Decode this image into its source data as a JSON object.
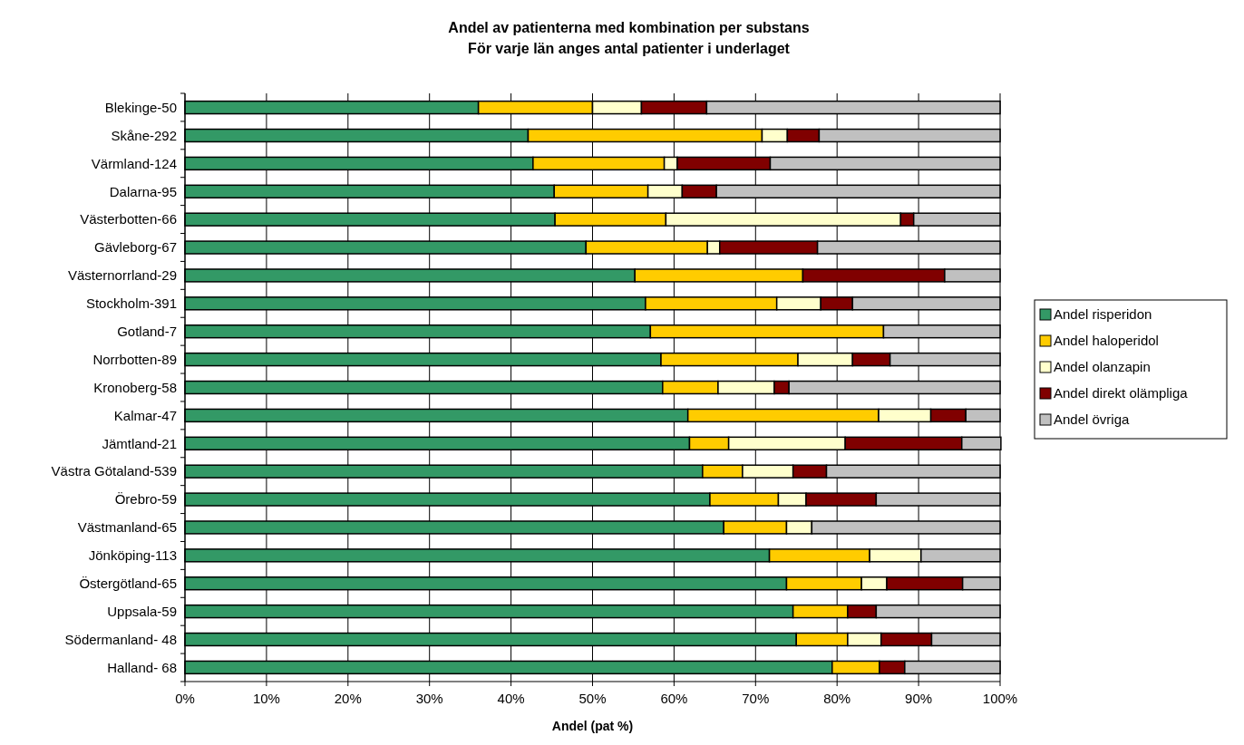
{
  "chart_data": {
    "type": "bar",
    "orientation": "horizontal",
    "stacked": true,
    "title": "Andel av patienterna med kombination per substans",
    "subtitle": "För varje län anges antal patienter i underlaget",
    "xlabel": "Andel (pat %)",
    "categories": [
      "Blekinge-50",
      "Skåne-292",
      "Värmland-124",
      "Dalarna-95",
      "Västerbotten-66",
      "Gävleborg-67",
      "Västernorrland-29",
      "Stockholm-391",
      "Gotland-7",
      "Norrbotten-89",
      "Kronoberg-58",
      "Kalmar-47",
      "Jämtland-21",
      "Västra Götaland-539",
      "Örebro-59",
      "Västmanland-65",
      "Jönköping-113",
      "Östergötland-65",
      "Uppsala-59",
      "Södermanland- 48",
      "Halland- 68"
    ],
    "series": [
      {
        "name": "Andel risperidon",
        "color": "#339966",
        "values": [
          36,
          42.1,
          42.7,
          45.3,
          45.4,
          49.2,
          55.2,
          56.5,
          57.1,
          58.4,
          58.6,
          61.7,
          61.9,
          63.5,
          64.4,
          66.1,
          71.7,
          73.8,
          74.6,
          75,
          79.4
        ]
      },
      {
        "name": "Andel haloperidol",
        "color": "#ffcc00",
        "values": [
          14,
          28.7,
          16.1,
          11.5,
          13.6,
          14.9,
          20.6,
          16.1,
          28.6,
          16.8,
          6.8,
          23.4,
          4.8,
          4.9,
          8.4,
          7.7,
          12.3,
          9.2,
          6.7,
          6.3,
          5.8
        ]
      },
      {
        "name": "Andel olanzapin",
        "color": "#ffffcc",
        "values": [
          6,
          3.1,
          1.6,
          4.2,
          28.8,
          1.5,
          0,
          5.4,
          0,
          6.7,
          6.9,
          6.4,
          14.3,
          6.2,
          3.4,
          3.1,
          6.3,
          3.1,
          0,
          4.1,
          0
        ]
      },
      {
        "name": "Andel direkt olämpliga",
        "color": "#800000",
        "values": [
          8,
          3.9,
          11.4,
          4.2,
          1.6,
          12,
          17.4,
          3.9,
          0,
          4.6,
          1.8,
          4.3,
          14.3,
          4.1,
          8.6,
          0,
          0,
          9.3,
          3.5,
          6.2,
          3.1
        ]
      },
      {
        "name": "Andel övriga",
        "color": "#c0c0c0",
        "values": [
          36,
          22.2,
          28.2,
          34.8,
          10.6,
          22.4,
          6.8,
          18.1,
          14.3,
          13.5,
          25.9,
          4.2,
          4.8,
          21.3,
          15.2,
          23.1,
          9.7,
          4.6,
          15.2,
          8.4,
          11.7
        ]
      }
    ],
    "xlim": [
      0,
      100
    ],
    "xticks": [
      {
        "value": 0,
        "label": "0%"
      },
      {
        "value": 10,
        "label": "10%"
      },
      {
        "value": 20,
        "label": "20%"
      },
      {
        "value": 30,
        "label": "30%"
      },
      {
        "value": 40,
        "label": "40%"
      },
      {
        "value": 50,
        "label": "50%"
      },
      {
        "value": 60,
        "label": "60%"
      },
      {
        "value": 70,
        "label": "70%"
      },
      {
        "value": 80,
        "label": "80%"
      },
      {
        "value": 90,
        "label": "90%"
      },
      {
        "value": 100,
        "label": "100%"
      }
    ],
    "grid": "x",
    "legend": "right"
  }
}
